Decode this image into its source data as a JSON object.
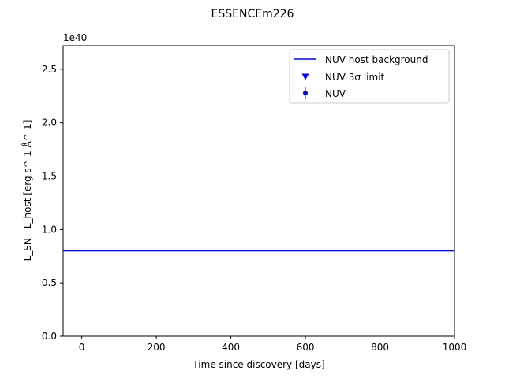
{
  "chart_data": {
    "type": "line",
    "title": "ESSENCEm226",
    "xlabel": "Time since discovery [days]",
    "ylabel": "L_SN - L_host [erg s^-1 Å^-1]",
    "y_offset_label": "1e40",
    "xlim": [
      -50,
      1000
    ],
    "ylim": [
      0,
      2.72
    ],
    "x_ticks": [
      0,
      200,
      400,
      600,
      800,
      1000
    ],
    "x_tick_labels": [
      "0",
      "200",
      "400",
      "600",
      "800",
      "1000"
    ],
    "y_ticks": [
      0,
      0.5,
      1.0,
      1.5,
      2.0,
      2.5
    ],
    "y_tick_labels": [
      "0.0",
      "0.5",
      "1.0",
      "1.5",
      "2.0",
      "2.5"
    ],
    "grid": false,
    "legend_position": "top-right",
    "series": [
      {
        "name": "NUV host background",
        "kind": "line",
        "color": "#0000ff",
        "x": [
          -50,
          1000
        ],
        "y": [
          0.8,
          0.8
        ]
      },
      {
        "name": "NUV 3σ limit",
        "kind": "marker-triangle-down",
        "color": "#0000ff",
        "x": [],
        "y": []
      },
      {
        "name": "NUV",
        "kind": "marker-errorbar",
        "color": "#0000ff",
        "x": [],
        "y": []
      }
    ]
  }
}
